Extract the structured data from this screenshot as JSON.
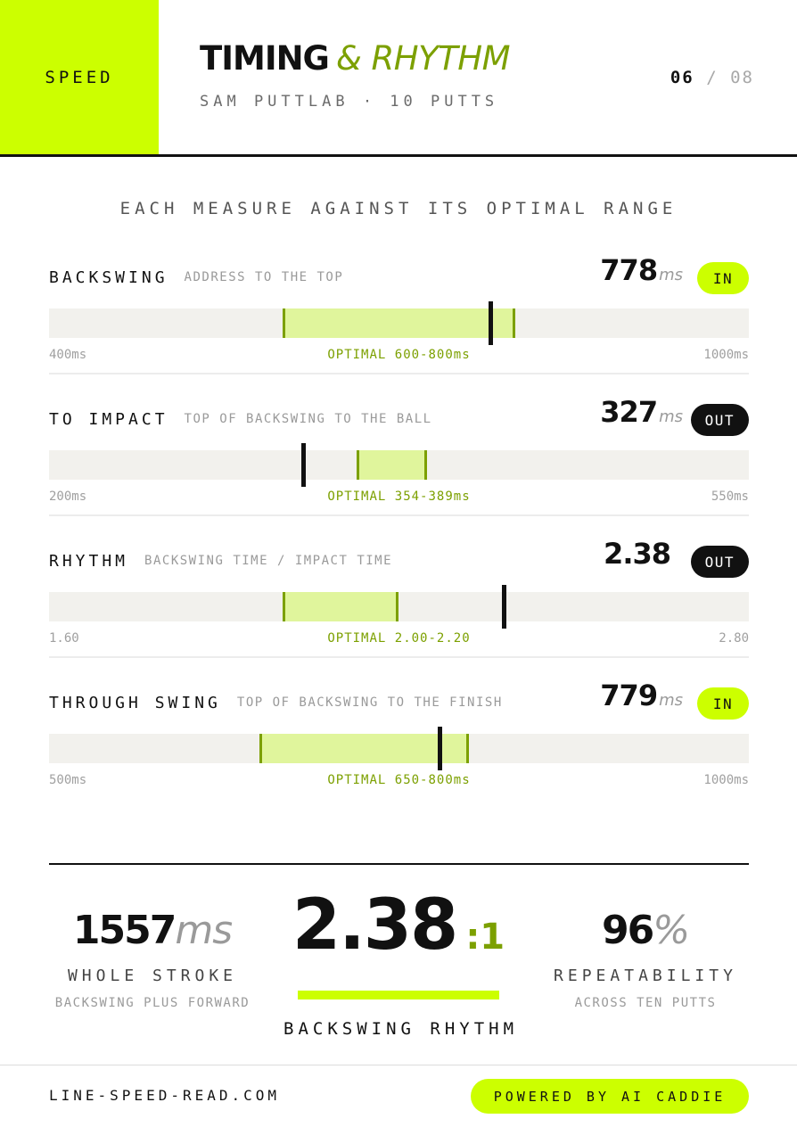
{
  "header": {
    "category": "SPEED",
    "title_bold": "TIMING",
    "title_light": "& RHYTHM",
    "subtitle": "SAM PUTTLAB · 10 PUTTS",
    "page_current": "06",
    "page_separator": "/",
    "page_total": "08"
  },
  "section_heading": "EACH MEASURE AGAINST ITS OPTIMAL RANGE",
  "metrics": [
    {
      "name": "BACKSWING",
      "description": "ADDRESS TO THE TOP",
      "value": "778",
      "unit": "ms",
      "status": "IN",
      "axis_min_label": "400ms",
      "axis_max_label": "1000ms",
      "optimal_label": "OPTIMAL 600-800ms",
      "scale": {
        "min": 400,
        "max": 1000,
        "opt_low": 600,
        "opt_high": 800,
        "actual": 778
      }
    },
    {
      "name": "TO IMPACT",
      "description": "TOP OF BACKSWING TO THE BALL",
      "value": "327",
      "unit": "ms",
      "status": "OUT",
      "axis_min_label": "200ms",
      "axis_max_label": "550ms",
      "optimal_label": "OPTIMAL 354-389ms",
      "scale": {
        "min": 200,
        "max": 550,
        "opt_low": 354,
        "opt_high": 389,
        "actual": 327
      }
    },
    {
      "name": "RHYTHM",
      "description": "BACKSWING TIME / IMPACT TIME",
      "value": "2.38",
      "unit": "",
      "status": "OUT",
      "axis_min_label": "1.60",
      "axis_max_label": "2.80",
      "optimal_label": "OPTIMAL 2.00-2.20",
      "scale": {
        "min": 1.6,
        "max": 2.8,
        "opt_low": 2.0,
        "opt_high": 2.2,
        "actual": 2.38
      }
    },
    {
      "name": "THROUGH SWING",
      "description": "TOP OF BACKSWING TO THE FINISH",
      "value": "779",
      "unit": "ms",
      "status": "IN",
      "axis_min_label": "500ms",
      "axis_max_label": "1000ms",
      "optimal_label": "OPTIMAL 650-800ms",
      "scale": {
        "min": 500,
        "max": 1000,
        "opt_low": 650,
        "opt_high": 800,
        "actual": 779
      }
    }
  ],
  "summary": {
    "whole_stroke": {
      "value": "1557",
      "unit": "ms",
      "caption": "WHOLE STROKE",
      "sub": "BACKSWING PLUS FORWARD"
    },
    "rhythm": {
      "value": "2.38",
      "ratio": ":1",
      "caption": "BACKSWING RHYTHM"
    },
    "repeatability": {
      "value": "96",
      "unit": "%",
      "caption": "REPEATABILITY",
      "sub": "ACROSS TEN PUTTS"
    }
  },
  "footer": {
    "url": "LINE-SPEED-READ.COM",
    "badge": "POWERED BY AI CADDIE"
  },
  "colors": {
    "accent": "#ccff00",
    "accent_dark": "#7ca000",
    "optimal_fill": "#e0f59c",
    "track": "#f2f1ed",
    "ink": "#111111"
  }
}
